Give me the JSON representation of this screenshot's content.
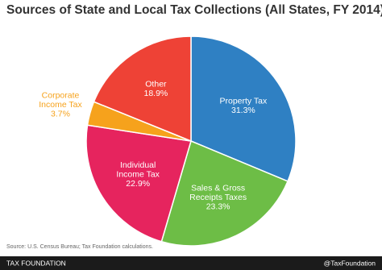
{
  "chart_data": {
    "type": "pie",
    "title": "Sources of State and Local Tax Collections (All States, FY 2014)",
    "categories": [
      [
        "Property Tax"
      ],
      [
        "Sales & Gross",
        "Receipts Taxes"
      ],
      [
        "Individual",
        "Income Tax"
      ],
      [
        "Corporate",
        "Income Tax"
      ],
      [
        "Other"
      ]
    ],
    "values": [
      31.3,
      23.3,
      22.9,
      3.7,
      18.9
    ],
    "value_labels": [
      "31.3%",
      "23.3%",
      "22.9%",
      "3.7%",
      "18.9%"
    ],
    "colors": [
      "#2f80c3",
      "#6dbd46",
      "#e6245e",
      "#f6a21c",
      "#ee4236"
    ],
    "source": "Source: U.S. Census Bureau; Tax Foundation calculations.",
    "footer_left": "TAX FOUNDATION",
    "footer_right": "@TaxFoundation"
  }
}
